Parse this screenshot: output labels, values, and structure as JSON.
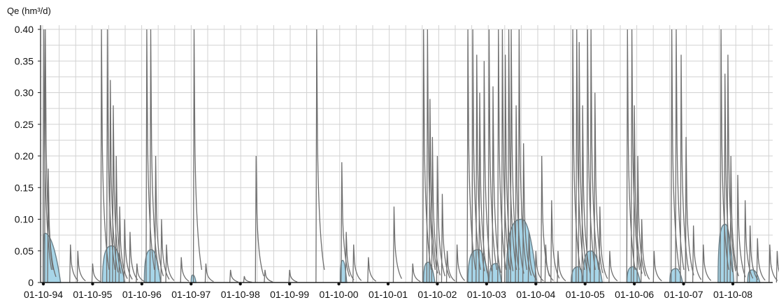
{
  "chart_data": {
    "type": "area",
    "ylabel": "Qe (hm³/d)",
    "xlabel": "",
    "title": "",
    "ylim": [
      0,
      0.4
    ],
    "y_ticks": [
      "0",
      "0.05",
      "0.10",
      "0.15",
      "0.20",
      "0.25",
      "0.30",
      "0.35",
      "0.40"
    ],
    "x_ticks": [
      "01-10-94",
      "01-10-95",
      "01-10-96",
      "01-10-97",
      "01-10-98",
      "01-10-99",
      "01-10-00",
      "01-10-01",
      "01-10-02",
      "01-10-03",
      "01-10-04",
      "01-10-05",
      "01-10-06",
      "01-10-07",
      "01-10-08"
    ],
    "grid": true,
    "colors": {
      "spikes": "#6f6f6f",
      "baseflow_line": "#6a7f88",
      "baseflow_fill": "#9dd0e6",
      "grid": "#d2d2d2",
      "axis": "#222222"
    },
    "series": [
      {
        "kind": "spikes",
        "points": [
          [
            0.01,
            0.4
          ],
          [
            0.04,
            0.4
          ],
          [
            0.1,
            0.18
          ],
          [
            0.55,
            0.06
          ],
          [
            0.7,
            0.05
          ],
          [
            1.0,
            0.03
          ],
          [
            1.18,
            0.4
          ],
          [
            1.3,
            0.4
          ],
          [
            1.36,
            0.32
          ],
          [
            1.42,
            0.28
          ],
          [
            1.48,
            0.2
          ],
          [
            1.55,
            0.12
          ],
          [
            1.65,
            0.1
          ],
          [
            1.76,
            0.08
          ],
          [
            1.9,
            0.03
          ],
          [
            2.1,
            0.4
          ],
          [
            2.18,
            0.4
          ],
          [
            2.28,
            0.2
          ],
          [
            2.4,
            0.1
          ],
          [
            2.5,
            0.06
          ],
          [
            2.8,
            0.04
          ],
          [
            3.06,
            0.4
          ],
          [
            3.3,
            0.03
          ],
          [
            3.8,
            0.02
          ],
          [
            4.08,
            0.01
          ],
          [
            4.32,
            0.2
          ],
          [
            4.5,
            0.02
          ],
          [
            5.0,
            0.02
          ],
          [
            5.55,
            0.4
          ],
          [
            6.06,
            0.19
          ],
          [
            6.15,
            0.08
          ],
          [
            6.3,
            0.06
          ],
          [
            6.6,
            0.04
          ],
          [
            7.12,
            0.12
          ],
          [
            7.5,
            0.03
          ],
          [
            7.72,
            0.4
          ],
          [
            7.8,
            0.4
          ],
          [
            7.85,
            0.29
          ],
          [
            7.9,
            0.23
          ],
          [
            8.0,
            0.2
          ],
          [
            8.1,
            0.14
          ],
          [
            8.2,
            0.05
          ],
          [
            8.4,
            0.06
          ],
          [
            8.62,
            0.4
          ],
          [
            8.72,
            0.4
          ],
          [
            8.8,
            0.36
          ],
          [
            8.86,
            0.3
          ],
          [
            8.95,
            0.35
          ],
          [
            9.05,
            0.4
          ],
          [
            9.13,
            0.31
          ],
          [
            9.24,
            0.4
          ],
          [
            9.32,
            0.4
          ],
          [
            9.38,
            0.36
          ],
          [
            9.45,
            0.4
          ],
          [
            9.5,
            0.4
          ],
          [
            9.6,
            0.28
          ],
          [
            9.66,
            0.4
          ],
          [
            9.75,
            0.22
          ],
          [
            9.86,
            0.08
          ],
          [
            10.0,
            0.05
          ],
          [
            10.12,
            0.2
          ],
          [
            10.2,
            0.06
          ],
          [
            10.32,
            0.13
          ],
          [
            10.45,
            0.05
          ],
          [
            10.75,
            0.4
          ],
          [
            10.83,
            0.4
          ],
          [
            10.88,
            0.38
          ],
          [
            10.95,
            0.28
          ],
          [
            11.05,
            0.4
          ],
          [
            11.12,
            0.4
          ],
          [
            11.2,
            0.3
          ],
          [
            11.3,
            0.12
          ],
          [
            11.5,
            0.05
          ],
          [
            11.86,
            0.4
          ],
          [
            11.95,
            0.4
          ],
          [
            12.0,
            0.28
          ],
          [
            12.07,
            0.2
          ],
          [
            12.15,
            0.1
          ],
          [
            12.4,
            0.05
          ],
          [
            12.76,
            0.4
          ],
          [
            12.85,
            0.4
          ],
          [
            12.95,
            0.36
          ],
          [
            13.05,
            0.23
          ],
          [
            13.2,
            0.09
          ],
          [
            13.4,
            0.06
          ],
          [
            13.76,
            0.4
          ],
          [
            13.84,
            0.33
          ],
          [
            13.9,
            0.36
          ],
          [
            13.96,
            0.2
          ],
          [
            14.1,
            0.17
          ],
          [
            14.25,
            0.13
          ],
          [
            14.35,
            0.09
          ],
          [
            14.5,
            0.07
          ],
          [
            14.75,
            0.06
          ],
          [
            14.9,
            0.05
          ]
        ]
      },
      {
        "kind": "baseflow",
        "events": [
          {
            "start": 0.0,
            "peak": 0.03,
            "end": 0.35,
            "value": 0.078
          },
          {
            "start": 1.2,
            "peak": 1.4,
            "end": 1.65,
            "value": 0.058
          },
          {
            "start": 2.05,
            "peak": 2.2,
            "end": 2.38,
            "value": 0.052
          },
          {
            "start": 3.0,
            "peak": 3.04,
            "end": 3.1,
            "value": 0.012
          },
          {
            "start": 6.03,
            "peak": 6.08,
            "end": 6.16,
            "value": 0.035
          },
          {
            "start": 7.72,
            "peak": 7.82,
            "end": 7.95,
            "value": 0.032
          },
          {
            "start": 8.62,
            "peak": 8.84,
            "end": 9.05,
            "value": 0.052
          },
          {
            "start": 9.05,
            "peak": 9.2,
            "end": 9.3,
            "value": 0.03
          },
          {
            "start": 9.4,
            "peak": 9.72,
            "end": 10.02,
            "value": 0.1
          },
          {
            "start": 10.72,
            "peak": 10.88,
            "end": 10.96,
            "value": 0.025
          },
          {
            "start": 10.96,
            "peak": 11.12,
            "end": 11.35,
            "value": 0.05
          },
          {
            "start": 11.85,
            "peak": 11.98,
            "end": 12.12,
            "value": 0.025
          },
          {
            "start": 12.72,
            "peak": 12.85,
            "end": 12.98,
            "value": 0.022
          },
          {
            "start": 13.7,
            "peak": 13.85,
            "end": 14.02,
            "value": 0.092
          },
          {
            "start": 14.3,
            "peak": 14.4,
            "end": 14.55,
            "value": 0.02
          }
        ]
      }
    ]
  }
}
